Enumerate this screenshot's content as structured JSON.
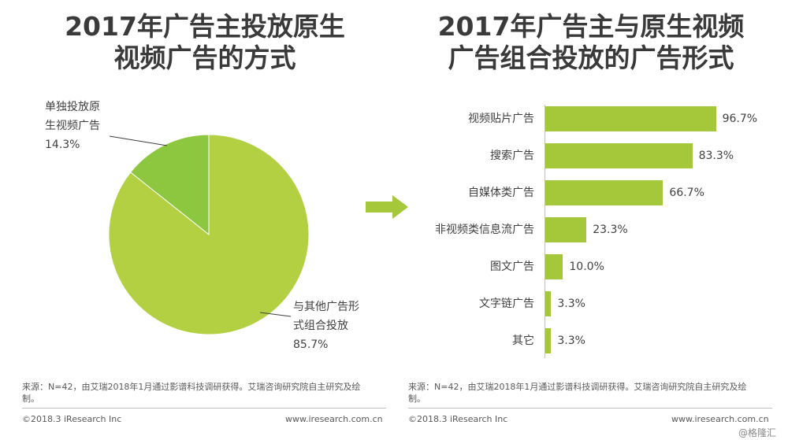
{
  "left": {
    "title_line1": "2017年广告主投放原生",
    "title_line2": "视频广告的方式",
    "slice_labels": [
      {
        "line1": "单独投放原",
        "line2": "生视频广告",
        "value": "14.3%"
      },
      {
        "line1": "与其他广告形",
        "line2": "式组合投放",
        "value": "85.7%"
      }
    ],
    "source_line1": "来源：N=42，由艾瑞2018年1月通过影谱科技调研获得。艾瑞咨询研究院自主研究及绘",
    "source_line2": "制。",
    "footer_left": "©2018.3 iResearch Inc",
    "footer_right": "www.iresearch.com.cn"
  },
  "right": {
    "title_line1": "2017年广告主与原生视频",
    "title_line2": "广告组合投放的广告形式",
    "source_line1": "来源：N=42，由艾瑞2018年1月通过影谱科技调研获得。艾瑞咨询研究院自主研究及绘",
    "source_line2": "制。",
    "footer_left": "©2018.3 iResearch Inc",
    "footer_right": "www.iresearch.com.cn"
  },
  "watermark": "@格隆汇",
  "colors": {
    "pie_large": "#b3d043",
    "pie_small": "#8dc63f",
    "bar": "#a5c83a",
    "arrow": "#a5c83a"
  },
  "chart_data": [
    {
      "type": "pie",
      "title": "2017年广告主投放原生视频广告的方式",
      "categories": [
        "单独投放原生视频广告",
        "与其他广告形式组合投放"
      ],
      "values": [
        14.3,
        85.7
      ],
      "unit": "%"
    },
    {
      "type": "bar",
      "orientation": "horizontal",
      "title": "2017年广告主与原生视频广告组合投放的广告形式",
      "categories": [
        "视频贴片广告",
        "搜索广告",
        "自媒体类广告",
        "非视频类信息流广告",
        "图文广告",
        "文字链广告",
        "其它"
      ],
      "values": [
        96.7,
        83.3,
        66.7,
        23.3,
        10.0,
        3.3,
        3.3
      ],
      "value_labels": [
        "96.7%",
        "83.3%",
        "66.7%",
        "23.3%",
        "10.0%",
        "3.3%",
        "3.3%"
      ],
      "xlim": [
        0,
        100
      ]
    }
  ]
}
